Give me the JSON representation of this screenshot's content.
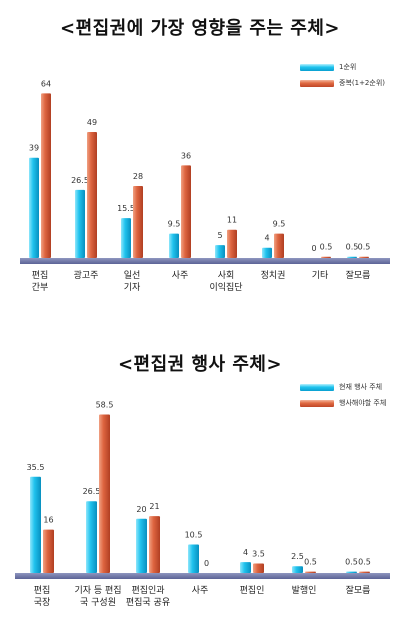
{
  "chart_data": [
    {
      "type": "bar",
      "title": "<편집권에 가장 영향을 주는 주체>",
      "categories": [
        [
          "편집",
          "간부"
        ],
        [
          "광고주"
        ],
        [
          "일선",
          "기자"
        ],
        [
          "사주"
        ],
        [
          "사회",
          "이익집단"
        ],
        [
          "정치권"
        ],
        [
          "기타"
        ],
        [
          "잘모름"
        ]
      ],
      "series": [
        {
          "name": "1순위",
          "values": [
            39,
            26.5,
            15.5,
            9.5,
            5,
            4,
            0,
            0.5
          ],
          "labels": [
            "39",
            "26.5",
            "15.5",
            "9.5",
            "5",
            "4",
            "0",
            "0.5"
          ],
          "color": "#1fc4ee"
        },
        {
          "name": "중복(1+2순위)",
          "values": [
            64,
            49,
            28,
            36,
            11,
            9.5,
            0.5,
            0.5
          ],
          "labels": [
            "64",
            "49",
            "28",
            "36",
            "11",
            "9.5",
            "0.5",
            "0.5"
          ],
          "color": "#e06a42"
        }
      ],
      "ylim": [
        0,
        70
      ],
      "grid": false,
      "legend": "top-right"
    },
    {
      "type": "bar",
      "title": "<편집권 행사 주체>",
      "categories": [
        [
          "편집",
          "국장"
        ],
        [
          "기자 등 편집",
          "국 구성원"
        ],
        [
          "편집인과",
          "편집국 공유"
        ],
        [
          "사주"
        ],
        [
          "편집인"
        ],
        [
          "발행인"
        ],
        [
          "잘모름"
        ]
      ],
      "series": [
        {
          "name": "현재 행사 주체",
          "values": [
            35.5,
            26.5,
            20,
            10.5,
            4,
            2.5,
            0.5
          ],
          "labels": [
            "35.5",
            "26.5",
            "20",
            "10.5",
            "4",
            "2.5",
            "0.5"
          ],
          "color": "#1fc4ee"
        },
        {
          "name": "행사해야할 주체",
          "values": [
            16,
            58.5,
            21,
            0,
            3.5,
            0.5,
            0.5
          ],
          "labels": [
            "16",
            "58.5",
            "21",
            "0",
            "3.5",
            "0.5",
            "0.5"
          ],
          "color": "#e06a42"
        }
      ],
      "ylim": [
        0,
        62
      ],
      "grid": false,
      "legend": "top-right"
    }
  ]
}
